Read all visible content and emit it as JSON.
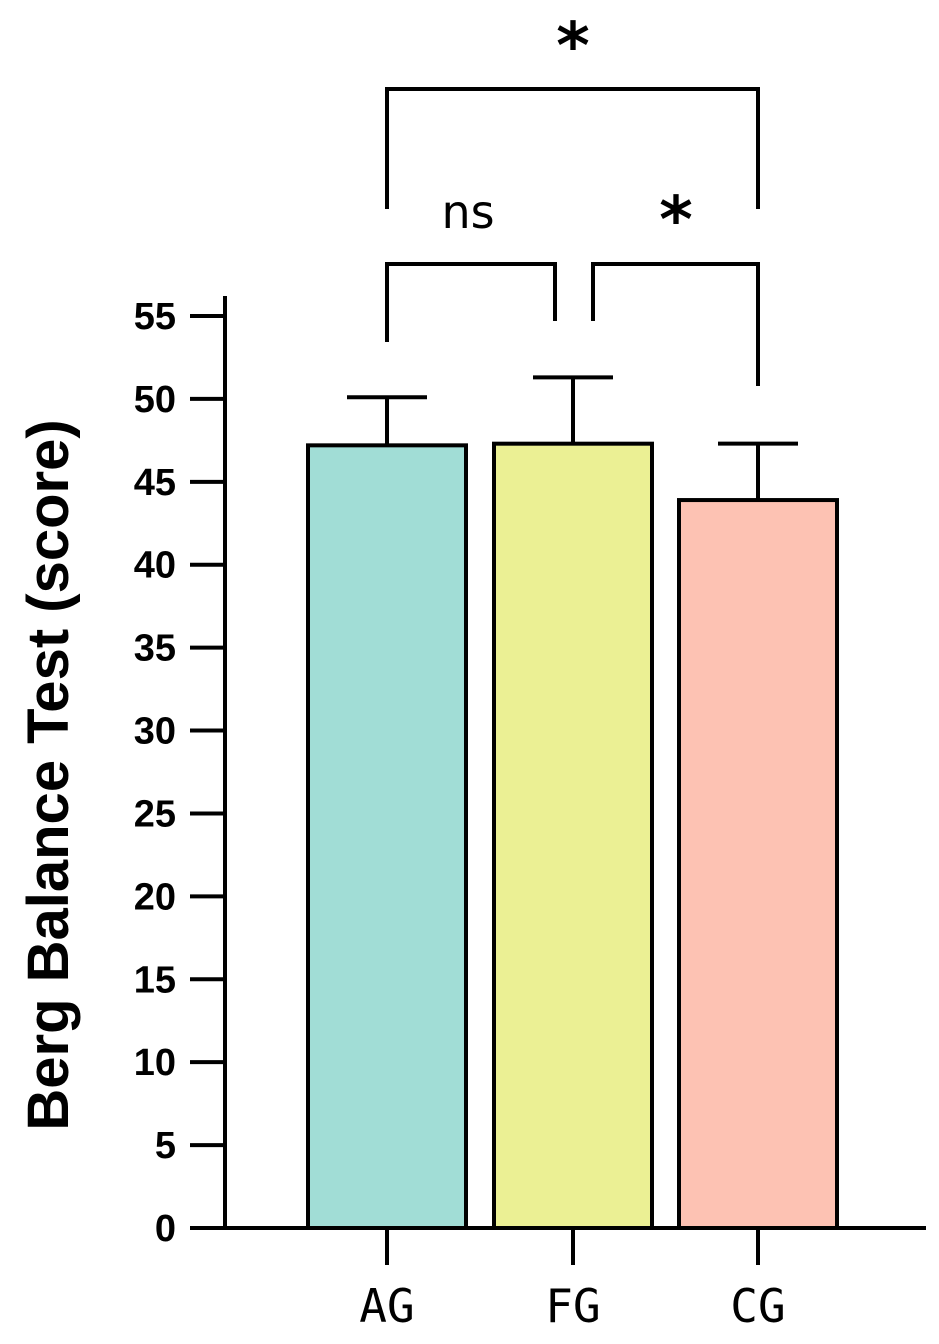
{
  "chart_data": {
    "type": "bar",
    "categories": [
      "AG",
      "FG",
      "CG"
    ],
    "values": [
      47.2,
      47.3,
      43.9
    ],
    "error": [
      2.9,
      4.0,
      3.4
    ],
    "colors": [
      "#a1ddd6",
      "#ebf094",
      "#fdc2b3"
    ],
    "ylabel": "Berg Balance Test (score)",
    "xlabel": "",
    "ylim": [
      0,
      55
    ],
    "yticks": [
      "0",
      "5",
      "10",
      "15",
      "20",
      "25",
      "30",
      "35",
      "40",
      "45",
      "50",
      "55"
    ],
    "grid": false,
    "significance": [
      {
        "from": "AG",
        "to": "FG",
        "label": "ns"
      },
      {
        "from": "FG",
        "to": "CG",
        "label": "*"
      },
      {
        "from": "AG",
        "to": "CG",
        "label": "*"
      }
    ]
  }
}
